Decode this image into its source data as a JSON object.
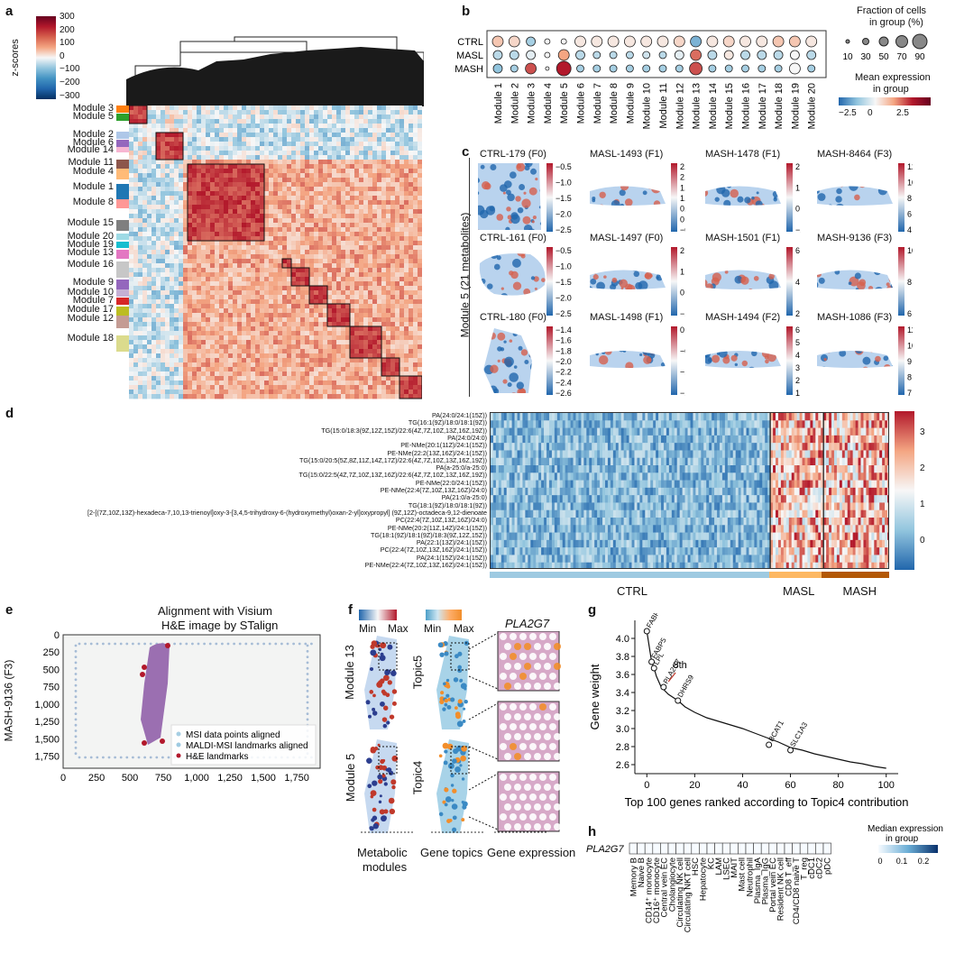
{
  "panels": {
    "a": "a",
    "b": "b",
    "c": "c",
    "d": "d",
    "e": "e",
    "f": "f",
    "g": "g",
    "h": "h"
  },
  "panel_a": {
    "colorbar_label": "z-scores",
    "colorbar_ticks": [
      "300",
      "200",
      "100",
      "0",
      "−100",
      "−200",
      "−300"
    ],
    "modules": [
      {
        "label": "Module 3",
        "color": "#ff7f0e"
      },
      {
        "label": "Module 5",
        "color": "#2ca02c"
      },
      {
        "label": "Module 2",
        "color": "#aec7e8"
      },
      {
        "label": "Module 6",
        "color": "#9467bd"
      },
      {
        "label": "Module 14",
        "color": "#f7b6d2"
      },
      {
        "label": "Module 11",
        "color": "#8c564b"
      },
      {
        "label": "Module 4",
        "color": "#ffbb78"
      },
      {
        "label": "Module 1",
        "color": "#1f77b4"
      },
      {
        "label": "Module 8",
        "color": "#ff9896"
      },
      {
        "label": "Module 15",
        "color": "#7f7f7f"
      },
      {
        "label": "Module 20",
        "color": "#9edae5"
      },
      {
        "label": "Module 19",
        "color": "#17becf"
      },
      {
        "label": "Module 13",
        "color": "#e377c2"
      },
      {
        "label": "Module 16",
        "color": "#c7c7c7"
      },
      {
        "label": "Module 9",
        "color": "#9467bd"
      },
      {
        "label": "Module 10",
        "color": "#c5b0d5"
      },
      {
        "label": "Module 7",
        "color": "#d62728"
      },
      {
        "label": "Module 17",
        "color": "#bcbd22"
      },
      {
        "label": "Module 12",
        "color": "#c49c94"
      },
      {
        "label": "Module 18",
        "color": "#dbdb8d"
      }
    ]
  },
  "panel_b": {
    "groups": [
      "CTRL",
      "MASL",
      "MASH"
    ],
    "modules": [
      "Module 1",
      "Module 2",
      "Module 3",
      "Module 4",
      "Module 5",
      "Module 6",
      "Module 7",
      "Module 8",
      "Module 9",
      "Module 10",
      "Module 11",
      "Module 12",
      "Module 13",
      "Module 14",
      "Module 15",
      "Module 16",
      "Module 17",
      "Module 18",
      "Module 19",
      "Module 20"
    ],
    "size_legend_title": "Fraction of cells\nin group (%)",
    "size_legend_title_1": "Fraction of cells",
    "size_legend_title_2": "in group (%)",
    "size_legend_values": [
      "10",
      "30",
      "50",
      "70",
      "90"
    ],
    "color_legend_title_1": "Mean expression",
    "color_legend_title_2": "in group",
    "color_ticks": [
      "−2.5",
      "0",
      "2.5"
    ]
  },
  "panel_c": {
    "row_label": "Module 5 (21 metabolites)",
    "samples": [
      {
        "title": "CTRL-179 (F0)",
        "ticks": [
          "−0.5",
          "−1.0",
          "−1.5",
          "−2.0",
          "−2.5"
        ]
      },
      {
        "title": "MASL-1493 (F1)",
        "ticks": [
          "2.5",
          "2.0",
          "1.5",
          "1.0",
          "0.5",
          "0",
          "−0.5"
        ]
      },
      {
        "title": "MASH-1478 (F1)",
        "ticks": [
          "2",
          "1",
          "0",
          "−1"
        ]
      },
      {
        "title": "MASH-8464 (F3)",
        "ticks": [
          "12",
          "10",
          "8",
          "6",
          "4"
        ]
      },
      {
        "title": "CTRL-161 (F0)",
        "ticks": [
          "−0.5",
          "−1.0",
          "−1.5",
          "−2.0",
          "−2.5"
        ]
      },
      {
        "title": "MASL-1497 (F0)",
        "ticks": [
          "2",
          "1",
          "0",
          "−1"
        ]
      },
      {
        "title": "MASH-1501 (F1)",
        "ticks": [
          "6",
          "4",
          "2"
        ]
      },
      {
        "title": "MASH-9136 (F3)",
        "ticks": [
          "10",
          "8",
          "6"
        ]
      },
      {
        "title": "CTRL-180 (F0)",
        "ticks": [
          "−1.4",
          "−1.6",
          "−1.8",
          "−2.0",
          "−2.2",
          "−2.4",
          "−2.6"
        ]
      },
      {
        "title": "MASL-1498 (F1)",
        "ticks": [
          "0",
          "−0.5",
          "−1.0",
          "−1.5"
        ]
      },
      {
        "title": "MASH-1494 (F2)",
        "ticks": [
          "6",
          "5",
          "4",
          "3",
          "2",
          "1"
        ]
      },
      {
        "title": "MASH-1086 (F3)",
        "ticks": [
          "11",
          "10",
          "9",
          "8",
          "7"
        ]
      }
    ]
  },
  "panel_d": {
    "rows": [
      "PA(24:0/24:1(15Z))",
      "TG(16:1(9Z)/18:0/18:1(9Z))",
      "TG(15:0/18:3(9Z,12Z,15Z)/22:6(4Z,7Z,10Z,13Z,16Z,19Z))",
      "PA(24:0/24:0)",
      "PE-NMe(20:1(11Z)/24:1(15Z))",
      "PE-NMe(22:2(13Z,16Z)/24:1(15Z))",
      "TG(15:0/20:5(5Z,8Z,11Z,14Z,17Z)/22:6(4Z,7Z,10Z,13Z,16Z,19Z))",
      "PA(a-25:0/a-25:0)",
      "TG(15:0/22:5(4Z,7Z,10Z,13Z,16Z)/22:6(4Z,7Z,10Z,13Z,16Z,19Z))",
      "PE-NMe(22:0/24:1(15Z))",
      "PE-NMe(22:4(7Z,10Z,13Z,16Z)/24:0)",
      "PA(21:0/a-25:0)",
      "TG(18:1(9Z)/18:0/18:1(9Z))",
      "[2-[(7Z,10Z,13Z)-hexadeca-7,10,13-trienoyl]oxy-3-[3,4,5-trihydroxy-6-(hydroxymethyl)oxan-2-yl]oxypropyl] (9Z,12Z)-octadeca-9,12-dienoate",
      "PC(22:4(7Z,10Z,13Z,16Z)/24:0)",
      "PE-NMe(20:2(11Z,14Z)/24:1(15Z))",
      "TG(18:1(9Z)/18:1(9Z)/18:3(9Z,12Z,15Z))",
      "PA(22:1(13Z)/24:1(15Z))",
      "PC(22:4(7Z,10Z,13Z,16Z)/24:1(15Z))",
      "PA(24:1(15Z)/24:1(15Z))",
      "PE-NMe(22:4(7Z,10Z,13Z,16Z)/24:1(15Z))"
    ],
    "groups": [
      {
        "label": "CTRL",
        "color": "#9ecae1"
      },
      {
        "label": "MASL",
        "color": "#fdb863"
      },
      {
        "label": "MASH",
        "color": "#b35806"
      }
    ],
    "colorbar_ticks": [
      "3",
      "2",
      "1",
      "0"
    ]
  },
  "panel_e": {
    "title_1": "Alignment with Visium",
    "title_2": "H&E image by STalign",
    "ylabel": "MASH-9136 (F3)",
    "xticks": [
      "0",
      "250",
      "500",
      "750",
      "1,000",
      "1,250",
      "1,500",
      "1,750"
    ],
    "yticks": [
      "0",
      "250",
      "500",
      "750",
      "1,000",
      "1,250",
      "1,500",
      "1,750"
    ],
    "legend": [
      {
        "label": "MSI data points aligned",
        "color": "#a6cee3"
      },
      {
        "label": "MALDI-MSI landmarks aligned",
        "color": "#9ecae1"
      },
      {
        "label": "H&E landmarks",
        "color": "#b2182b"
      }
    ]
  },
  "panel_f": {
    "cb1_min": "Min",
    "cb1_max": "Max",
    "cb2_min": "Min",
    "cb2_max": "Max",
    "gene": "PLA2G7",
    "labels": [
      "Module 13",
      "Module 5",
      "Topic5",
      "Topic4"
    ],
    "captions": [
      {
        "l1": "Metabolic",
        "l2": "modules"
      },
      {
        "l1": "Gene topics",
        "l2": ""
      },
      {
        "l1": "Gene expression",
        "l2": ""
      }
    ]
  },
  "chart_data": [
    {
      "type": "line",
      "panel": "g",
      "xlabel": "Top 100 genes ranked according to Topic4 contribution",
      "ylabel": "Gene weight",
      "xlim": [
        -5,
        105
      ],
      "ylim": [
        2.5,
        4.2
      ],
      "xticks": [
        0,
        20,
        40,
        60,
        80,
        100
      ],
      "yticks": [
        2.6,
        2.8,
        3.0,
        3.2,
        3.4,
        3.6,
        3.8,
        4.0
      ],
      "x": [
        0,
        2,
        3,
        4,
        6,
        9,
        13,
        16,
        20,
        25,
        30,
        35,
        40,
        45,
        50,
        55,
        60,
        65,
        70,
        75,
        80,
        85,
        90,
        95,
        100
      ],
      "y": [
        4.08,
        3.74,
        3.67,
        3.58,
        3.46,
        3.38,
        3.31,
        3.24,
        3.18,
        3.12,
        3.08,
        3.04,
        3.0,
        2.95,
        2.9,
        2.85,
        2.79,
        2.76,
        2.72,
        2.69,
        2.66,
        2.63,
        2.61,
        2.58,
        2.56
      ],
      "annotations": [
        {
          "label": "FABP4",
          "x": 0,
          "y": 4.08
        },
        {
          "label": "FABP5",
          "x": 2,
          "y": 3.74
        },
        {
          "label": "LPL",
          "x": 3,
          "y": 3.67
        },
        {
          "label": "PLA2G7",
          "x": 7,
          "y": 3.46
        },
        {
          "label": "DHRS9",
          "x": 13,
          "y": 3.31
        },
        {
          "label": "BCAT1",
          "x": 51,
          "y": 2.82
        },
        {
          "label": "SLC1A3",
          "x": 60,
          "y": 2.76
        }
      ],
      "callout": "8th"
    },
    {
      "type": "heatmap",
      "panel": "h",
      "row": "PLA2G7",
      "categories": [
        "Memory B",
        "Naive B",
        "CD14⁺ monocyte",
        "CD16⁺ monocyte",
        "Central vein EC",
        "Cholangiocyte",
        "Circulating NK cell",
        "Circulating NKT cell",
        "HSC",
        "Hepatocyte",
        "KC",
        "LAM",
        "LSEC",
        "MAIT",
        "Mast cell",
        "Neutrophil",
        "Plasma_IgA",
        "Plasma_IgG",
        "Portal vein EC",
        "Resident NK cell",
        "CD8 T_eff",
        "CD4/CD8 naive T",
        "T_reg",
        "cDC1",
        "cDC2",
        "pDC"
      ],
      "values": [
        0,
        0,
        0,
        0,
        0,
        0,
        0,
        0,
        0,
        0,
        0,
        0,
        0,
        0,
        0,
        0,
        0,
        0,
        0,
        0,
        0,
        0,
        0,
        0,
        0,
        0
      ],
      "colorbar_title_1": "Median expression",
      "colorbar_title_2": "in group",
      "colorbar_ticks": [
        "0",
        "0.1",
        "0.2"
      ]
    }
  ]
}
